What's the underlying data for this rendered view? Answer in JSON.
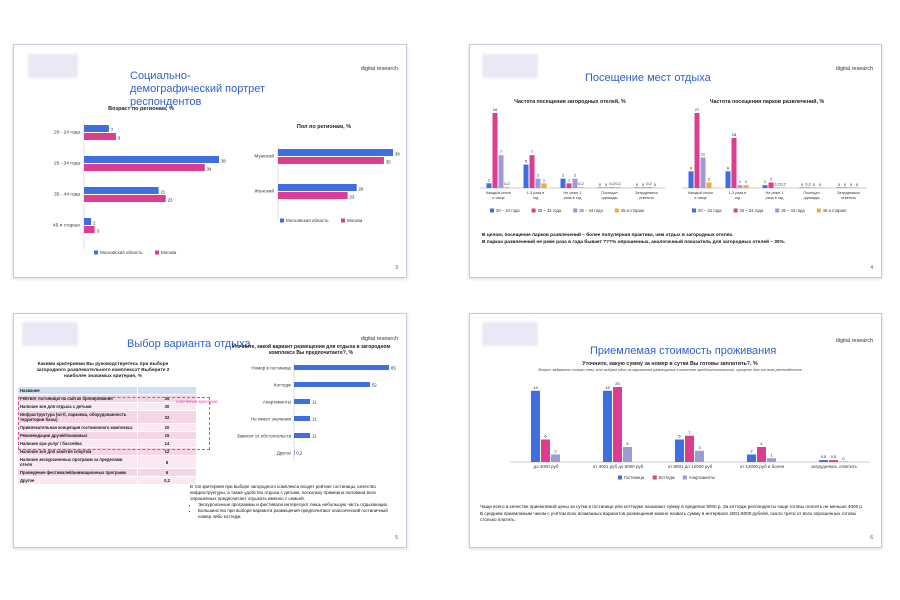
{
  "slides": [
    {
      "title": "Социально-демографический портрет респондентов",
      "brand": "digital research",
      "page": "3"
    },
    {
      "title": "Посещение мест отдыха",
      "brand": "digital research",
      "page": "4",
      "notes": [
        "В целом, посещение парков развлечений – более популярная практика, чем отдых в загородных отелях.",
        "В парках развлечений не реже раза в года бывает ???% опрошенных, аналогичный показатель для загородных отелей – 30%."
      ]
    },
    {
      "title": "Выбор варианта отдыха",
      "brand": "digital research",
      "page": "5",
      "criteria_question": "Какими критериями Вы руководствуетесь при выборе загородного развлекательного комплекса? Выберите 2 наиболее значимых критерия, %",
      "key_criteria_label": "ключевые критерии",
      "notes_intro": "В топ критериев при выборе загородного комплекса входят рейтинг гостиницы, качество инфраструктуры, а также удобство отдыха с детьми, поскольку примерно половина всех опрошенных предпочитает отдыхать именно с семьей.",
      "bullets": [
        "Экскурсионные программы и фестивали интересуют лишь небольшую часть отдыхающих.",
        "Большинство при выборе варианта размещения предпочитают классический гостиничный номер либо коттедж."
      ]
    },
    {
      "title": "Приемлемая стоимость проживания",
      "brand": "digital research",
      "page": "6",
      "notes": [
        "Чаще всего в качестве приемлемой цены за сутки в гостинице или коттедже называют сумму в пределах 8000 р. За коттедж респонденты чаще готовы платить не меньше 4000 р.",
        "В среднем приемлемым чеком с учётом всех возможных вариантов размещения можно назвать сумму в интервале 4001-8000 рублей, около трети от всех опрошенных готовы столько платить."
      ]
    }
  ],
  "colors": {
    "blue": "#3f6ee0",
    "pink": "#dc3d8e",
    "lavender": "#9d9ad6",
    "orange": "#f0a93a",
    "title": "#2f5fcf"
  },
  "criteria_table": [
    {
      "label": "Название",
      "value": ""
    },
    {
      "label": "Рейтинг гостиницы на сайтах бронирования",
      "value": "36"
    },
    {
      "label": "Наличие зон для отдыха с детьми",
      "value": "30"
    },
    {
      "label": "Инфраструктура (wi-fi, парковка, оборудованность территории базы)",
      "value": "32"
    },
    {
      "label": "Привлекательная концепция гостиничного комплекса",
      "value": "20"
    },
    {
      "label": "Рекомендации друзей/знакомых",
      "value": "15"
    },
    {
      "label": "Наличие spa-услуг / бассейна",
      "value": "14"
    },
    {
      "label": "Наличие зон для занятия спортом",
      "value": "12"
    },
    {
      "label": "Наличие экскурсионных программ за пределами отеля",
      "value": "8"
    },
    {
      "label": "Проведение фестивалей/анимационных программ",
      "value": "6"
    },
    {
      "label": "Другое",
      "value": "0,2"
    }
  ],
  "chart_data": [
    {
      "type": "bar",
      "orientation": "horizontal",
      "title": "Возраст по регионам, %",
      "categories": [
        "20 - 24 года",
        "25 - 34 года",
        "35 - 44 года",
        "45 и старше"
      ],
      "series": [
        {
          "name": "Московская область",
          "values": [
            7,
            38,
            21,
            2
          ]
        },
        {
          "name": "Москва",
          "values": [
            9,
            34,
            23,
            3
          ]
        }
      ],
      "legend": "bottom"
    },
    {
      "type": "bar",
      "orientation": "horizontal",
      "title": "Пол по регионам, %",
      "categories": [
        "Мужской",
        "Женский"
      ],
      "series": [
        {
          "name": "Московская область",
          "values": [
            38,
            26
          ]
        },
        {
          "name": "Москва",
          "values": [
            35,
            23
          ]
        }
      ],
      "legend": "bottom"
    },
    {
      "type": "bar",
      "title": "Частота посещения загородных отелей, %",
      "categories": [
        "Каждый сезон и чаще",
        "1-3 раза в год",
        "Не реже 1 раза в год",
        "Посещал однажды",
        "Затрудняюсь ответить"
      ],
      "series": [
        {
          "name": "20 – 24 года",
          "values": [
            1,
            5,
            2,
            0,
            0
          ]
        },
        {
          "name": "25 – 34 года",
          "values": [
            16,
            7,
            1,
            0,
            0
          ]
        },
        {
          "name": "35 – 44 года",
          "values": [
            7,
            2,
            2,
            0.2,
            0.2
          ]
        },
        {
          "name": "45 и старше",
          "values": [
            0.2,
            1,
            0.2,
            0.2,
            0
          ]
        }
      ],
      "legend": "bottom"
    },
    {
      "type": "bar",
      "title": "Частота посещения парков развлечений, %",
      "categories": [
        "Каждый сезон и чаще",
        "1-3 раза в год",
        "Не реже 1 раза в год",
        "Посещал однажды",
        "Затрудняюсь ответить"
      ],
      "series": [
        {
          "name": "20 – 24 года",
          "values": [
            6,
            6,
            1,
            0,
            0
          ]
        },
        {
          "name": "25 – 34 года",
          "values": [
            27,
            18,
            2,
            0.2,
            0
          ]
        },
        {
          "name": "35 – 44 года",
          "values": [
            11,
            1,
            0.2,
            0,
            0
          ]
        },
        {
          "name": "45 и старше",
          "values": [
            2,
            1,
            0.2,
            0,
            0
          ]
        }
      ],
      "legend": "bottom"
    },
    {
      "type": "bar",
      "orientation": "horizontal",
      "title": "Уточните, какой вариант размещения для отдыха в загородном комплексе Вы предпочитаете?, %",
      "categories": [
        "Номер в гостинице",
        "Коттедж",
        "Апартаменты",
        "Не имеет значения",
        "Зависит от обстоятельств",
        "Другое"
      ],
      "values": [
        65,
        52,
        11,
        11,
        11,
        0.2
      ]
    },
    {
      "type": "bar",
      "title": "Уточните, какую сумму за номер в сутки Вы готовы заплатить?, %",
      "subtitle": "Вопрос задавался только тем, кто выбрал один из вариантов размещения в качестве предпочтительного, процент дан от всех респондентов",
      "categories": [
        "до 4000 руб",
        "от 4001 руб до 8000 руб",
        "от 8001 до 12000 руб",
        "от 12000 руб и более",
        "затрудняюсь ответить"
      ],
      "series": [
        {
          "name": "Гостиница",
          "values": [
            19,
            19,
            6,
            2,
            0.5
          ]
        },
        {
          "name": "Коттедж",
          "values": [
            6,
            20,
            7,
            4,
            0.5
          ]
        },
        {
          "name": "Апартаменты",
          "values": [
            2,
            4,
            3,
            1,
            0
          ]
        }
      ],
      "legend": "bottom"
    }
  ]
}
